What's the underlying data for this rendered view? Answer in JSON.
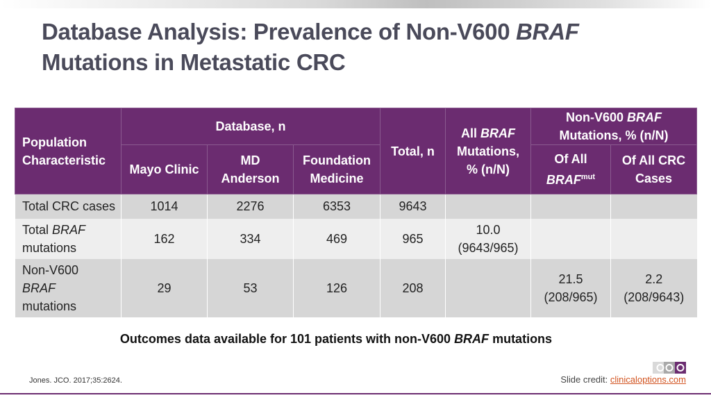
{
  "title": {
    "line1_prefix": "Database Analysis: Prevalence of Non-V600 ",
    "line1_italic": "BRAF",
    "line2": "Mutations in Metastatic CRC"
  },
  "table": {
    "headers": {
      "population_characteristic_1": "Population",
      "population_characteristic_2": "Characteristic",
      "database_group": "Database, n",
      "mayo": "Mayo Clinic",
      "md_anderson_1": "MD",
      "md_anderson_2": "Anderson",
      "foundation_1": "Foundation",
      "foundation_2": "Medicine",
      "total": "Total, n",
      "all_braf_1": "All ",
      "all_braf_italic": "BRAF",
      "all_braf_2": "Mutations,",
      "all_braf_3": "% (n/N)",
      "non_v600_1": "Non-V600 ",
      "non_v600_italic": "BRAF",
      "non_v600_2": "Mutations, % (n/N)",
      "of_all_braf_1": "Of All",
      "of_all_braf_italic": "BRAF",
      "of_all_braf_sup": "mut",
      "of_all_crc_1": "Of All CRC",
      "of_all_crc_2": "Cases"
    },
    "rows": [
      {
        "label_1": "Total CRC cases",
        "mayo": "1014",
        "mda": "2276",
        "fm": "6353",
        "total": "9643",
        "all_braf_1": "",
        "all_braf_2": "",
        "of_braf_1": "",
        "of_braf_2": "",
        "of_crc_1": "",
        "of_crc_2": ""
      },
      {
        "label_1": "Total ",
        "label_italic": "BRAF",
        "label_2": "mutations",
        "mayo": "162",
        "mda": "334",
        "fm": "469",
        "total": "965",
        "all_braf_1": "10.0",
        "all_braf_2": "(9643/965)",
        "of_braf_1": "",
        "of_braf_2": "",
        "of_crc_1": "",
        "of_crc_2": ""
      },
      {
        "label_1": "Non-V600",
        "label_italic": "BRAF",
        "label_2": "mutations",
        "mayo": "29",
        "mda": "53",
        "fm": "126",
        "total": "208",
        "all_braf_1": "",
        "all_braf_2": "",
        "of_braf_1": "21.5",
        "of_braf_2": "(208/965)",
        "of_crc_1": "2.2",
        "of_crc_2": "(208/9643)"
      }
    ]
  },
  "outcomes": {
    "prefix": "Outcomes data available for 101 patients with non-V600 ",
    "italic": "BRAF",
    "suffix": " mutations"
  },
  "citation": "Jones. JCO. 2017;35:2624.",
  "credit": {
    "label": "Slide credit: ",
    "link": "clinicaloptions.com"
  },
  "colors": {
    "header_purple": "#6b2c70",
    "row_dark": "#d6d6d6",
    "row_light": "#eeeeee",
    "link_orange": "#d2531f"
  }
}
